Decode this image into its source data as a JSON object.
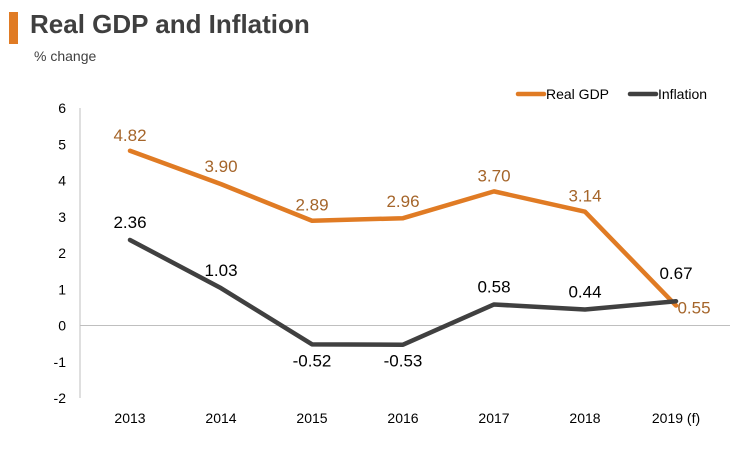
{
  "header": {
    "title": "Real GDP and Inflation",
    "subtitle": "% change"
  },
  "colors": {
    "accent": "#e07b24",
    "real_gdp": "#e07b24",
    "real_gdp_label": "#a5652a",
    "inflation": "#404040",
    "axis": "#bfbfbf"
  },
  "chart_data": {
    "type": "line",
    "title": "Real GDP and Inflation",
    "subtitle": "% change",
    "categories": [
      "2013",
      "2014",
      "2015",
      "2016",
      "2017",
      "2018",
      "2019 (f)"
    ],
    "series": [
      {
        "name": "Real GDP",
        "values": [
          4.82,
          3.9,
          2.89,
          2.96,
          3.7,
          3.14,
          0.55
        ],
        "labels": [
          "4.82",
          "3.90",
          "2.89",
          "2.96",
          "3.70",
          "3.14",
          "0.55"
        ]
      },
      {
        "name": "Inflation",
        "values": [
          2.36,
          1.03,
          -0.52,
          -0.53,
          0.58,
          0.44,
          0.67
        ],
        "labels": [
          "2.36",
          "1.03",
          "-0.52",
          "-0.53",
          "0.58",
          "0.44",
          "0.67"
        ]
      }
    ],
    "y_ticks": [
      "6",
      "5",
      "4",
      "3",
      "2",
      "1",
      "0",
      "-1",
      "-2"
    ],
    "ylim": [
      -2,
      6
    ],
    "grid": false,
    "legend": "top-right"
  }
}
